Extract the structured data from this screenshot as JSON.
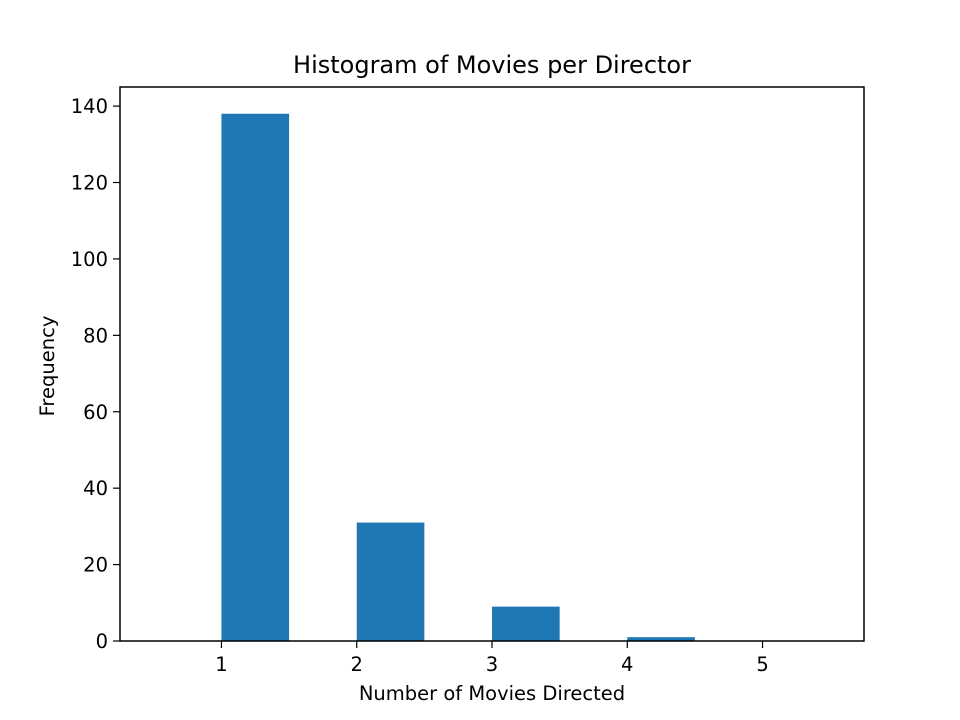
{
  "chart_data": {
    "type": "bar",
    "title": "Histogram of Movies per Director",
    "xlabel": "Number of Movies Directed",
    "ylabel": "Frequency",
    "bins": [
      {
        "start": 1,
        "end": 1.5,
        "value": 138
      },
      {
        "start": 2,
        "end": 2.5,
        "value": 31
      },
      {
        "start": 3,
        "end": 3.5,
        "value": 9
      },
      {
        "start": 4,
        "end": 4.5,
        "value": 1
      },
      {
        "start": 5,
        "end": 5.5,
        "value": 0
      }
    ],
    "xlim": [
      0.25,
      5.75
    ],
    "ylim": [
      0,
      145
    ],
    "xticks": [
      1,
      2,
      3,
      4,
      5
    ],
    "yticks": [
      0,
      20,
      40,
      60,
      80,
      100,
      120,
      140
    ],
    "grid": false,
    "legend": false,
    "bar_color": "#1f77b4"
  }
}
